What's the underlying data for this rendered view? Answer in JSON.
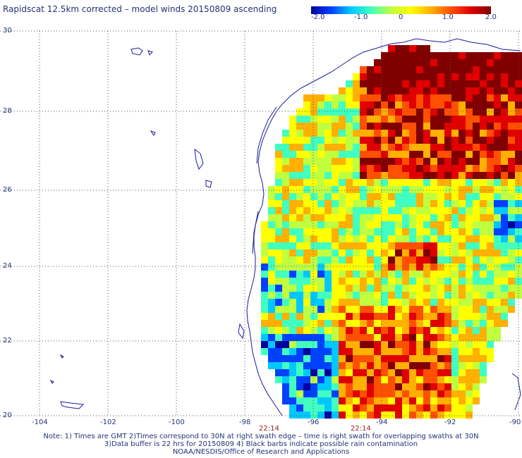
{
  "title": "Rapidscat 12.5km corrected – model winds 20150809 ascending",
  "colorbar": {
    "ticks": [
      "-2.0",
      "-1.0",
      "0",
      "1.0",
      "2.0"
    ],
    "colors": [
      "#0000a0",
      "#0040ff",
      "#00c8ff",
      "#40ffc0",
      "#c0ff40",
      "#ffff00",
      "#ffb000",
      "#ff5000",
      "#e00000",
      "#800000"
    ]
  },
  "map": {
    "lat_labels": [
      "30",
      "28",
      "26",
      "24",
      "22",
      "20"
    ],
    "lon_labels": [
      "-104",
      "-102",
      "-100",
      "-98",
      "-96",
      "-94",
      "-92",
      "-90"
    ],
    "swath_times": [
      "22:14",
      "22:14"
    ],
    "land_color": "#ffffff",
    "coast_color": "#1a1a9a",
    "grid_style": "dotted"
  },
  "notes": [
    "Note: 1) Times are GMT 2)Times correspond to 30N at right swath edge – time is right swath for overlapping swaths at 30N",
    "3)Data buffer is 22 hrs for 20150809 4) Black barbs indicate possible rain contamination",
    "NOAA/NESDIS/Office of Research and Applications"
  ]
}
